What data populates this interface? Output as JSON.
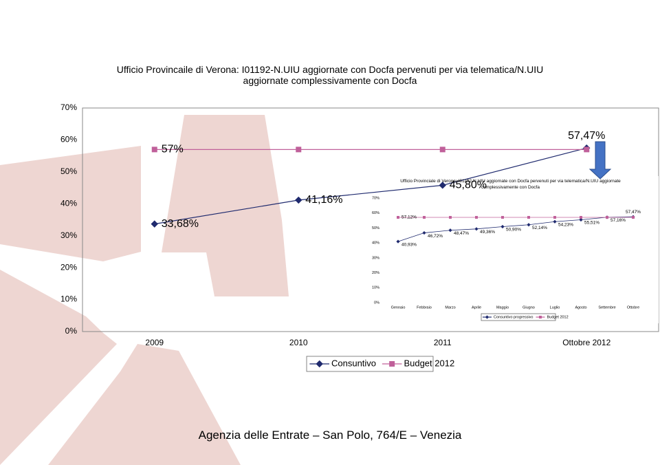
{
  "chart_data": [
    {
      "type": "line",
      "title": "Ufficio Provincaile di Verona: I01192-N.UIU aggiornate con Docfa pervenuti per via telematica/N.UIU aggiornate complessivamente con Docfa",
      "categories": [
        "2009",
        "2010",
        "2011",
        "Ottobre 2012"
      ],
      "series": [
        {
          "name": "Consuntivo",
          "color": "#1f2a6e",
          "marker": "diamond",
          "values": [
            33.68,
            41.16,
            45.8,
            57.47
          ],
          "value_labels": [
            "33,68%",
            "41,16%",
            "45,80%",
            "57,47%"
          ]
        },
        {
          "name": "Budget 2012",
          "color": "#c0609a",
          "marker": "square",
          "values": [
            57,
            57,
            57,
            57
          ],
          "value_labels": [
            "57%",
            null,
            null,
            null
          ]
        }
      ],
      "ylim": [
        0,
        70
      ],
      "yticks": [
        {
          "value": 0,
          "label": "0%"
        },
        {
          "value": 10,
          "label": "10%"
        },
        {
          "value": 20,
          "label": "20%"
        },
        {
          "value": 30,
          "label": "30%"
        },
        {
          "value": 40,
          "label": "40%"
        },
        {
          "value": 50,
          "label": "50%"
        },
        {
          "value": 60,
          "label": "60%"
        },
        {
          "value": 70,
          "label": "70%"
        }
      ],
      "grid": false,
      "legend": "bottom"
    },
    {
      "type": "line",
      "title": "Ufficio Provinciale di Verona: I01192-N.UIU aggiornate con Docfa pervenuti per via telematica/N.UIU aggiornate complessivamente con Docfa",
      "categories": [
        "Gennaio",
        "Febbraio",
        "Marzo",
        "Aprile",
        "Maggio",
        "Giugno",
        "Luglio",
        "Agosto",
        "Settembre",
        "Ottobre"
      ],
      "series": [
        {
          "name": "Consuntivo progressivo",
          "color": "#1f2a6e",
          "marker": "diamond",
          "values": [
            40.93,
            46.72,
            48.47,
            49.36,
            50.9,
            52.14,
            54.23,
            55.51,
            57.16,
            57.47
          ],
          "value_labels": [
            "40,93%",
            "46,72%",
            "48,47%",
            "49,36%",
            "50,90%",
            "52,14%",
            "54,23%",
            "55,51%",
            "57,16%",
            "57,47%"
          ]
        },
        {
          "name": "Budget 2012",
          "color": "#c0609a",
          "marker": "square",
          "values": [
            57.12,
            57.12,
            57.12,
            57.12,
            57.12,
            57.12,
            57.12,
            57.12,
            57.12,
            57.12
          ],
          "value_labels": [
            "57,12%",
            null,
            null,
            null,
            null,
            null,
            null,
            null,
            null,
            null
          ]
        }
      ],
      "ylim": [
        0,
        70
      ],
      "yticks": [
        {
          "value": 0,
          "label": "0%"
        },
        {
          "value": 10,
          "label": "10%"
        },
        {
          "value": 20,
          "label": "20%"
        },
        {
          "value": 30,
          "label": "30%"
        },
        {
          "value": 40,
          "label": "40%"
        },
        {
          "value": 50,
          "label": "50%"
        },
        {
          "value": 60,
          "label": "60%"
        },
        {
          "value": 70,
          "label": "70%"
        }
      ],
      "grid": false,
      "legend": "bottom"
    }
  ],
  "footer": "Agenzia delle Entrate – San Polo, 764/E – Venezia"
}
